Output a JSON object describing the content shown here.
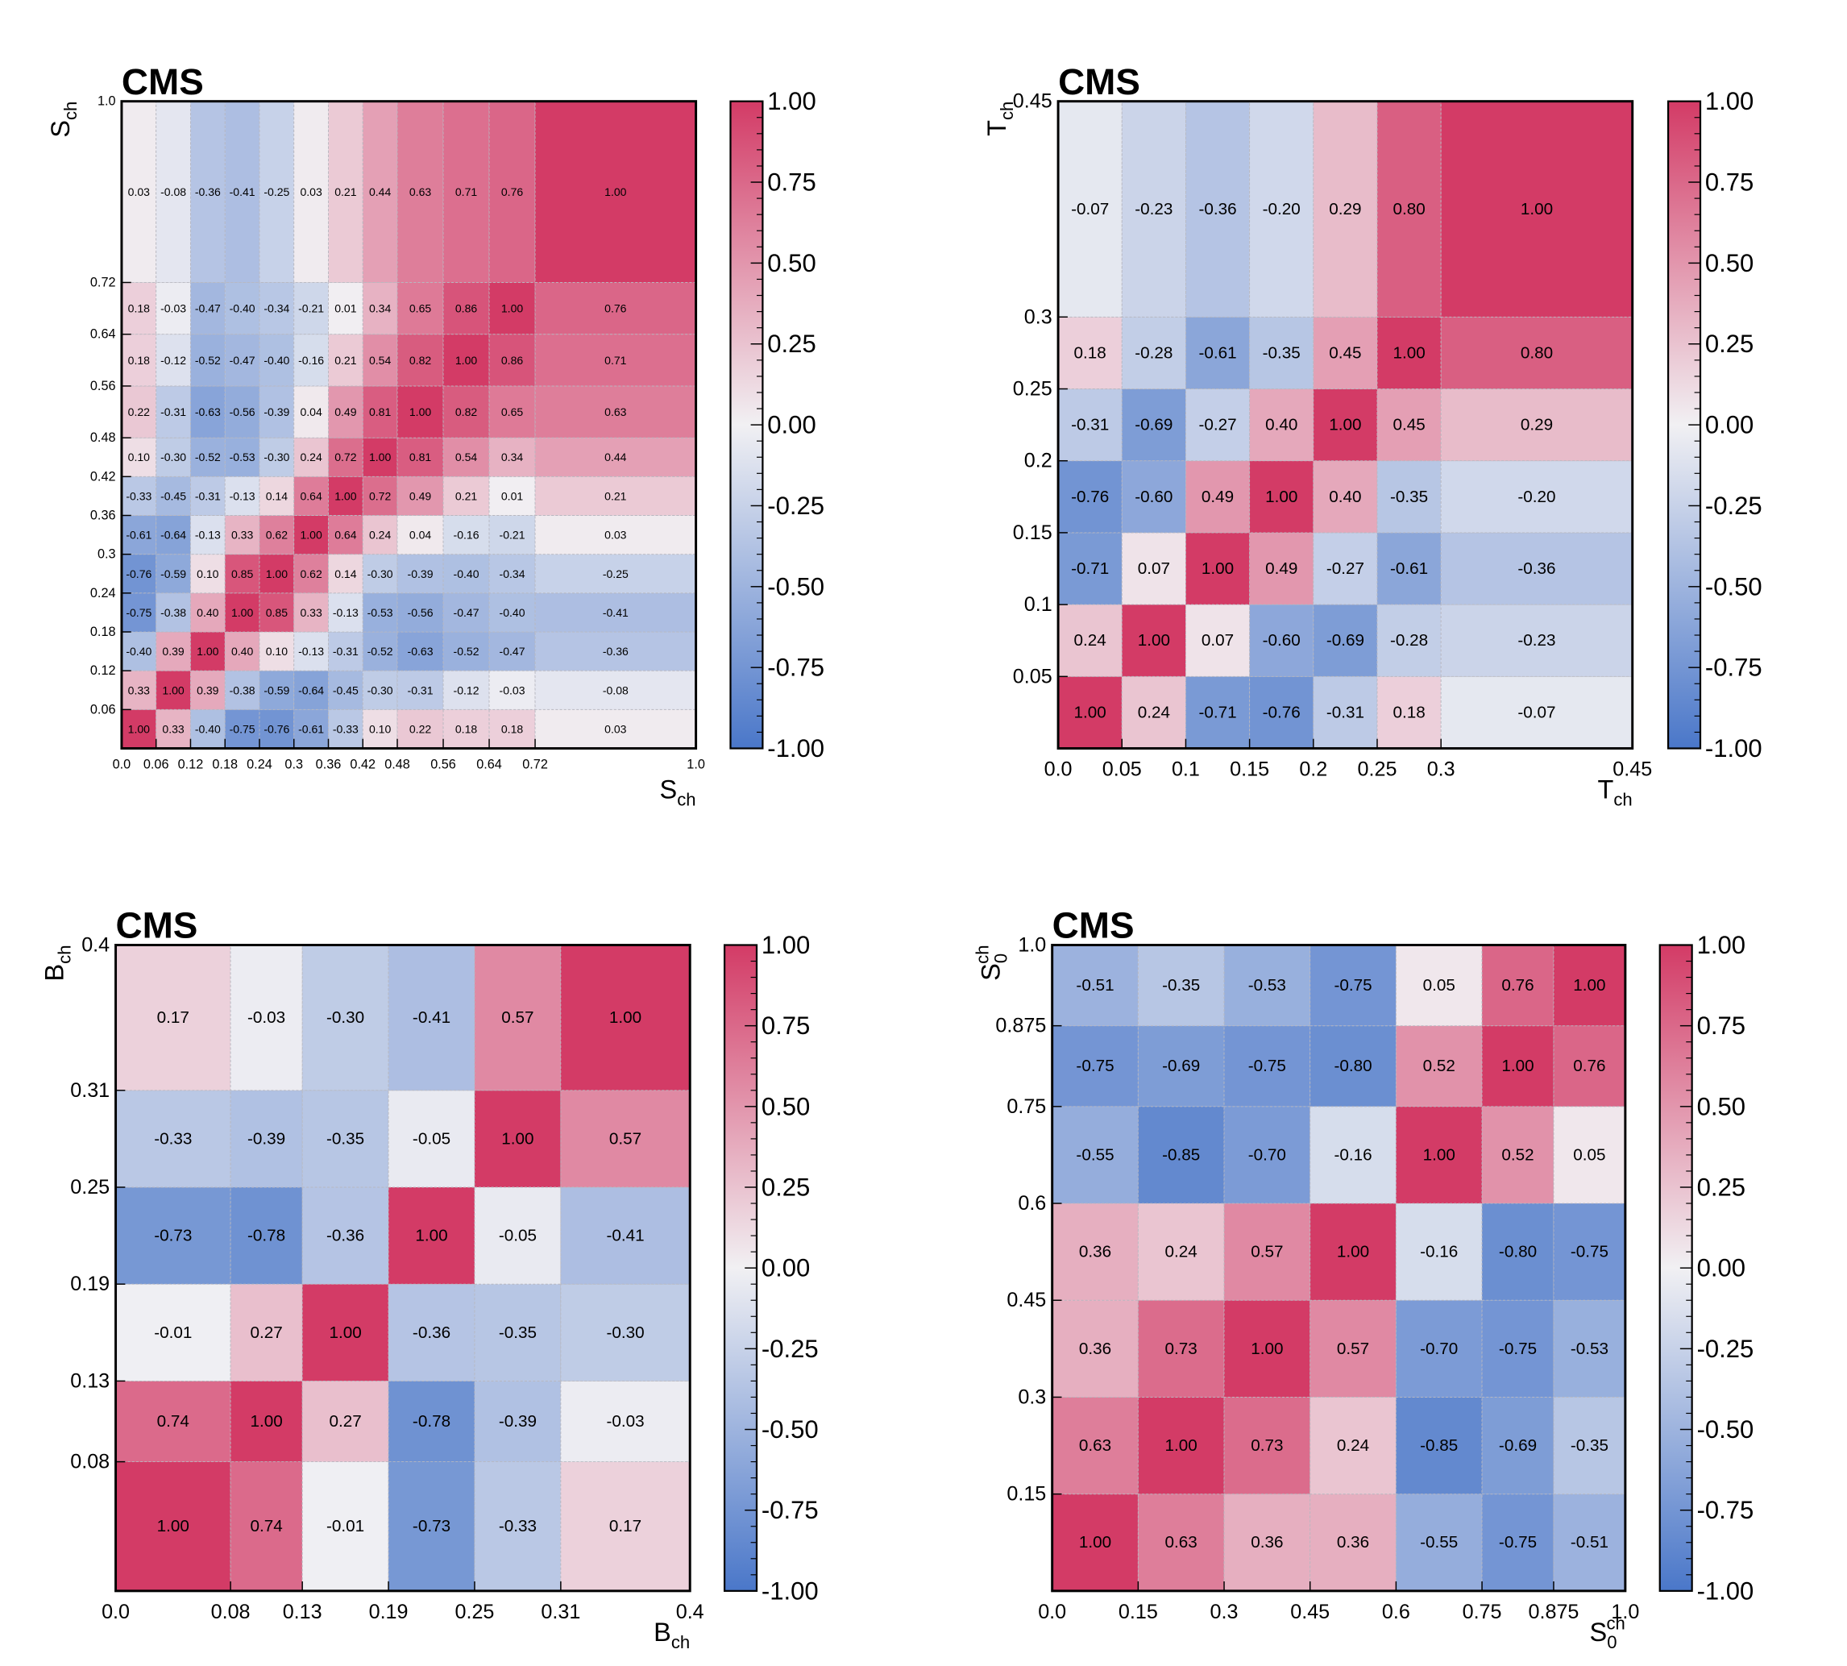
{
  "chart_data": [
    {
      "type": "heatmap",
      "title": "CMS",
      "x_label": {
        "text": "S",
        "sub": "ch"
      },
      "y_label": {
        "text": "S",
        "sub": "ch"
      },
      "xbins": [
        0,
        0.06,
        0.12,
        0.18,
        0.24,
        0.3,
        0.36,
        0.42,
        0.48,
        0.56,
        0.64,
        0.72,
        1.0
      ],
      "ybins": [
        0,
        0.06,
        0.12,
        0.18,
        0.24,
        0.3,
        0.36,
        0.42,
        0.48,
        0.56,
        0.64,
        0.72,
        1.0
      ],
      "xlim": [
        0,
        1
      ],
      "ylim": [
        0,
        1
      ],
      "xticks": [
        {
          "value": 0,
          "label": "0.0"
        },
        0.06,
        0.12,
        0.18,
        0.24,
        0.3,
        0.36,
        0.42,
        0.48,
        0.56,
        0.64,
        0.72,
        {
          "value": 1,
          "label": "1.0"
        }
      ],
      "yticks": [
        0.06,
        0.12,
        0.18,
        0.24,
        0.3,
        0.36,
        0.42,
        0.48,
        0.56,
        0.64,
        0.72,
        {
          "value": 1,
          "label": "1.0"
        }
      ],
      "values": [
        [
          1.0,
          0.33,
          -0.4,
          -0.75,
          -0.76,
          -0.61,
          -0.33,
          0.1,
          0.22,
          0.18,
          0.18,
          0.03
        ],
        [
          0.33,
          1.0,
          0.39,
          -0.38,
          -0.59,
          -0.64,
          -0.45,
          -0.3,
          -0.31,
          -0.12,
          -0.03,
          -0.08
        ],
        [
          -0.4,
          0.39,
          1.0,
          0.4,
          0.1,
          -0.13,
          -0.31,
          -0.52,
          -0.63,
          -0.52,
          -0.47,
          -0.36
        ],
        [
          -0.75,
          -0.38,
          0.4,
          1.0,
          0.85,
          0.33,
          -0.13,
          -0.53,
          -0.56,
          -0.47,
          -0.4,
          -0.41
        ],
        [
          -0.76,
          -0.59,
          0.1,
          0.85,
          1.0,
          0.62,
          0.14,
          -0.3,
          -0.39,
          -0.4,
          -0.34,
          -0.25
        ],
        [
          -0.61,
          -0.64,
          -0.13,
          0.33,
          0.62,
          1.0,
          0.64,
          0.24,
          0.04,
          -0.16,
          -0.21,
          0.03
        ],
        [
          -0.33,
          -0.45,
          -0.31,
          -0.13,
          0.14,
          0.64,
          1.0,
          0.72,
          0.49,
          0.21,
          0.01,
          0.21
        ],
        [
          0.1,
          -0.3,
          -0.52,
          -0.53,
          -0.3,
          0.24,
          0.72,
          1.0,
          0.81,
          0.54,
          0.34,
          0.44
        ],
        [
          0.22,
          -0.31,
          -0.63,
          -0.56,
          -0.39,
          0.04,
          0.49,
          0.81,
          1.0,
          0.82,
          0.65,
          0.63
        ],
        [
          0.18,
          -0.12,
          -0.52,
          -0.47,
          -0.4,
          -0.16,
          0.21,
          0.54,
          0.82,
          1.0,
          0.86,
          0.71
        ],
        [
          0.18,
          -0.03,
          -0.47,
          -0.4,
          -0.34,
          -0.21,
          0.01,
          0.34,
          0.65,
          0.86,
          1.0,
          0.76
        ],
        [
          0.03,
          -0.08,
          -0.36,
          -0.41,
          -0.25,
          0.03,
          0.21,
          0.44,
          0.63,
          0.71,
          0.76,
          1.0
        ]
      ],
      "value_labels": [
        [
          "1.00",
          "0.33",
          "-0.40",
          "-0.75",
          "-0.76",
          "-0.61",
          "-0.33",
          "0.10",
          "0.22",
          "0.18",
          "0.18",
          "0.03"
        ],
        [
          "0.33",
          "1.00",
          "0.39",
          "-0.38",
          "-0.59",
          "-0.64",
          "-0.45",
          "-0.30",
          "-0.31",
          "-0.12",
          "-0.03",
          "-0.08"
        ],
        [
          "-0.40",
          "0.39",
          "1.00",
          "0.40",
          "0.10",
          "-0.13",
          "-0.31",
          "-0.52",
          "-0.63",
          "-0.52",
          "-0.47",
          "-0.36"
        ],
        [
          "-0.75",
          "-0.38",
          "0.40",
          "1.00",
          "0.85",
          "0.33",
          "-0.13",
          "-0.53",
          "-0.56",
          "-0.47",
          "-0.40",
          "-0.41"
        ],
        [
          "-0.76",
          "-0.59",
          "0.10",
          "0.85",
          "1.00",
          "0.62",
          "0.14",
          "-0.30",
          "-0.39",
          "-0.40",
          "-0.34",
          "-0.25"
        ],
        [
          "-0.61",
          "-0.64",
          "-0.13",
          "0.33",
          "0.62",
          "1.00",
          "0.64",
          "0.24",
          "0.04",
          "-0.16",
          "-0.21",
          "0.03"
        ],
        [
          "-0.33",
          "-0.45",
          "-0.31",
          "-0.13",
          "0.14",
          "0.64",
          "1.00",
          "0.72",
          "0.49",
          "0.21",
          "0.01",
          "0.21"
        ],
        [
          "0.10",
          "-0.30",
          "-0.52",
          "-0.53",
          "-0.30",
          "0.24",
          "0.72",
          "1.00",
          "0.81",
          "0.54",
          "0.34",
          "0.44"
        ],
        [
          "0.22",
          "-0.31",
          "-0.63",
          "-0.56",
          "-0.39",
          "0.04",
          "0.49",
          "0.81",
          "1.00",
          "0.82",
          "0.65",
          "0.63"
        ],
        [
          "0.18",
          "-0.12",
          "-0.52",
          "-0.47",
          "-0.40",
          "-0.16",
          "0.21",
          "0.54",
          "0.82",
          "1.00",
          "0.86",
          "0.71"
        ],
        [
          "0.18",
          "-0.03",
          "-0.47",
          "-0.40",
          "-0.34",
          "-0.21",
          "0.01",
          "0.34",
          "0.65",
          "0.86",
          "1.00",
          "0.76"
        ],
        [
          "0.03",
          "-0.08",
          "-0.36",
          "-0.41",
          "-0.25",
          "0.03",
          "0.21",
          "0.44",
          "0.63",
          "0.71",
          "0.76",
          "1.00"
        ]
      ],
      "zlim": [
        -1,
        1
      ],
      "zticks": [
        {
          "value": 1,
          "label": "1.00"
        },
        0.75,
        {
          "value": 0.5,
          "label": "0.50"
        },
        0.25,
        {
          "value": 0,
          "label": "0.00"
        },
        -0.25,
        {
          "value": -0.5,
          "label": "-0.50"
        },
        -0.75,
        {
          "value": -1,
          "label": "-1.00"
        }
      ],
      "colormap": [
        "#4a77c9",
        "#f1f0f3",
        "#d33b66"
      ]
    },
    {
      "type": "heatmap",
      "title": "CMS",
      "x_label": {
        "text": "T",
        "sub": "ch"
      },
      "y_label": {
        "text": "T",
        "sub": "ch"
      },
      "xbins": [
        0,
        0.05,
        0.1,
        0.15,
        0.2,
        0.25,
        0.3,
        0.45
      ],
      "ybins": [
        0,
        0.05,
        0.1,
        0.15,
        0.2,
        0.25,
        0.3,
        0.45
      ],
      "xlim": [
        0,
        0.45
      ],
      "ylim": [
        0,
        0.45
      ],
      "xticks": [
        {
          "value": 0,
          "label": "0.0"
        },
        0.05,
        0.1,
        0.15,
        0.2,
        0.25,
        0.3,
        0.45
      ],
      "yticks": [
        0.05,
        0.1,
        0.15,
        0.2,
        0.25,
        0.3,
        0.45
      ],
      "values": [
        [
          1.0,
          0.24,
          -0.71,
          -0.76,
          -0.31,
          0.18,
          -0.07
        ],
        [
          0.24,
          1.0,
          0.07,
          -0.6,
          -0.69,
          -0.28,
          -0.23
        ],
        [
          -0.71,
          0.07,
          1.0,
          0.49,
          -0.27,
          -0.61,
          -0.36
        ],
        [
          -0.76,
          -0.6,
          0.49,
          1.0,
          0.4,
          -0.35,
          -0.2
        ],
        [
          -0.31,
          -0.69,
          -0.27,
          0.4,
          1.0,
          0.45,
          0.29
        ],
        [
          0.18,
          -0.28,
          -0.61,
          -0.35,
          0.45,
          1.0,
          0.8
        ],
        [
          -0.07,
          -0.23,
          -0.36,
          -0.2,
          0.29,
          0.8,
          1.0
        ]
      ],
      "value_labels": [
        [
          "1.00",
          "0.24",
          "-0.71",
          "-0.76",
          "-0.31",
          "0.18",
          "-0.07"
        ],
        [
          "0.24",
          "1.00",
          "0.07",
          "-0.60",
          "-0.69",
          "-0.28",
          "-0.23"
        ],
        [
          "-0.71",
          "0.07",
          "1.00",
          "0.49",
          "-0.27",
          "-0.61",
          "-0.36"
        ],
        [
          "-0.76",
          "-0.60",
          "0.49",
          "1.00",
          "0.40",
          "-0.35",
          "-0.20"
        ],
        [
          "-0.31",
          "-0.69",
          "-0.27",
          "0.40",
          "1.00",
          "0.45",
          "0.29"
        ],
        [
          "0.18",
          "-0.28",
          "-0.61",
          "-0.35",
          "0.45",
          "1.00",
          "0.80"
        ],
        [
          "-0.07",
          "-0.23",
          "-0.36",
          "-0.20",
          "0.29",
          "0.80",
          "1.00"
        ]
      ],
      "zlim": [
        -1,
        1
      ],
      "zticks": [
        {
          "value": 1,
          "label": "1.00"
        },
        0.75,
        {
          "value": 0.5,
          "label": "0.50"
        },
        0.25,
        {
          "value": 0,
          "label": "0.00"
        },
        -0.25,
        {
          "value": -0.5,
          "label": "-0.50"
        },
        -0.75,
        {
          "value": -1,
          "label": "-1.00"
        }
      ],
      "colormap": [
        "#4a77c9",
        "#f1f0f3",
        "#d33b66"
      ]
    },
    {
      "type": "heatmap",
      "title": "CMS",
      "x_label": {
        "text": "B",
        "sub": "ch"
      },
      "y_label": {
        "text": "B",
        "sub": "ch"
      },
      "xbins": [
        0,
        0.08,
        0.13,
        0.19,
        0.25,
        0.31,
        0.4
      ],
      "ybins": [
        0,
        0.08,
        0.13,
        0.19,
        0.25,
        0.31,
        0.4
      ],
      "xlim": [
        0,
        0.4
      ],
      "ylim": [
        0,
        0.4
      ],
      "xticks": [
        {
          "value": 0,
          "label": "0.0"
        },
        0.08,
        0.13,
        0.19,
        0.25,
        0.31,
        0.4
      ],
      "yticks": [
        0.08,
        0.13,
        0.19,
        0.25,
        0.31,
        0.4
      ],
      "values": [
        [
          1.0,
          0.74,
          -0.01,
          -0.73,
          -0.33,
          0.17
        ],
        [
          0.74,
          1.0,
          0.27,
          -0.78,
          -0.39,
          -0.03
        ],
        [
          -0.01,
          0.27,
          1.0,
          -0.36,
          -0.35,
          -0.3
        ],
        [
          -0.73,
          -0.78,
          -0.36,
          1.0,
          -0.05,
          -0.41
        ],
        [
          -0.33,
          -0.39,
          -0.35,
          -0.05,
          1.0,
          0.57
        ],
        [
          0.17,
          -0.03,
          -0.3,
          -0.41,
          0.57,
          1.0
        ]
      ],
      "value_labels": [
        [
          "1.00",
          "0.74",
          "-0.01",
          "-0.73",
          "-0.33",
          "0.17"
        ],
        [
          "0.74",
          "1.00",
          "0.27",
          "-0.78",
          "-0.39",
          "-0.03"
        ],
        [
          "-0.01",
          "0.27",
          "1.00",
          "-0.36",
          "-0.35",
          "-0.30"
        ],
        [
          "-0.73",
          "-0.78",
          "-0.36",
          "1.00",
          "-0.05",
          "-0.41"
        ],
        [
          "-0.33",
          "-0.39",
          "-0.35",
          "-0.05",
          "1.00",
          "0.57"
        ],
        [
          "0.17",
          "-0.03",
          "-0.30",
          "-0.41",
          "0.57",
          "1.00"
        ]
      ],
      "zlim": [
        -1,
        1
      ],
      "zticks": [
        {
          "value": 1,
          "label": "1.00"
        },
        0.75,
        {
          "value": 0.5,
          "label": "0.50"
        },
        0.25,
        {
          "value": 0,
          "label": "0.00"
        },
        -0.25,
        {
          "value": -0.5,
          "label": "-0.50"
        },
        -0.75,
        {
          "value": -1,
          "label": "-1.00"
        }
      ],
      "colormap": [
        "#4a77c9",
        "#f1f0f3",
        "#d33b66"
      ]
    },
    {
      "type": "heatmap",
      "title": "CMS",
      "x_label": {
        "text": "S",
        "sub": "0",
        "sup": "ch"
      },
      "y_label": {
        "text": "S",
        "sub": "0",
        "sup": "ch"
      },
      "xbins": [
        0,
        0.15,
        0.3,
        0.45,
        0.6,
        0.75,
        0.875,
        1.0
      ],
      "ybins": [
        0,
        0.15,
        0.3,
        0.45,
        0.6,
        0.75,
        0.875,
        1.0
      ],
      "xlim": [
        0,
        1
      ],
      "ylim": [
        0,
        1
      ],
      "xticks": [
        {
          "value": 0,
          "label": "0.0"
        },
        0.15,
        0.3,
        0.45,
        0.6,
        0.75,
        0.875,
        {
          "value": 1,
          "label": "1.0"
        }
      ],
      "yticks": [
        0.15,
        0.3,
        0.45,
        0.6,
        0.75,
        0.875,
        {
          "value": 1,
          "label": "1.0"
        }
      ],
      "values": [
        [
          1.0,
          0.63,
          0.36,
          0.36,
          -0.55,
          -0.75,
          -0.51
        ],
        [
          0.63,
          1.0,
          0.73,
          0.24,
          -0.85,
          -0.69,
          -0.35
        ],
        [
          0.36,
          0.73,
          1.0,
          0.57,
          -0.7,
          -0.75,
          -0.53
        ],
        [
          0.36,
          0.24,
          0.57,
          1.0,
          -0.16,
          -0.8,
          -0.75
        ],
        [
          -0.55,
          -0.85,
          -0.7,
          -0.16,
          1.0,
          0.52,
          0.05
        ],
        [
          -0.75,
          -0.69,
          -0.75,
          -0.8,
          0.52,
          1.0,
          0.76
        ],
        [
          -0.51,
          -0.35,
          -0.53,
          -0.75,
          0.05,
          0.76,
          1.0
        ]
      ],
      "value_labels": [
        [
          "1.00",
          "0.63",
          "0.36",
          "0.36",
          "-0.55",
          "-0.75",
          "-0.51"
        ],
        [
          "0.63",
          "1.00",
          "0.73",
          "0.24",
          "-0.85",
          "-0.69",
          "-0.35"
        ],
        [
          "0.36",
          "0.73",
          "1.00",
          "0.57",
          "-0.70",
          "-0.75",
          "-0.53"
        ],
        [
          "0.36",
          "0.24",
          "0.57",
          "1.00",
          "-0.16",
          "-0.80",
          "-0.75"
        ],
        [
          "-0.55",
          "-0.85",
          "-0.70",
          "-0.16",
          "1.00",
          "0.52",
          "0.05"
        ],
        [
          "-0.75",
          "-0.69",
          "-0.75",
          "-0.80",
          "0.52",
          "1.00",
          "0.76"
        ],
        [
          "-0.51",
          "-0.35",
          "-0.53",
          "-0.75",
          "0.05",
          "0.76",
          "1.00"
        ]
      ],
      "zlim": [
        -1,
        1
      ],
      "zticks": [
        {
          "value": 1,
          "label": "1.00"
        },
        0.75,
        {
          "value": 0.5,
          "label": "0.50"
        },
        0.25,
        {
          "value": 0,
          "label": "0.00"
        },
        -0.25,
        {
          "value": -0.5,
          "label": "-0.50"
        },
        -0.75,
        {
          "value": -1,
          "label": "-1.00"
        }
      ],
      "colormap": [
        "#4a77c9",
        "#f1f0f3",
        "#d33b66"
      ]
    }
  ]
}
